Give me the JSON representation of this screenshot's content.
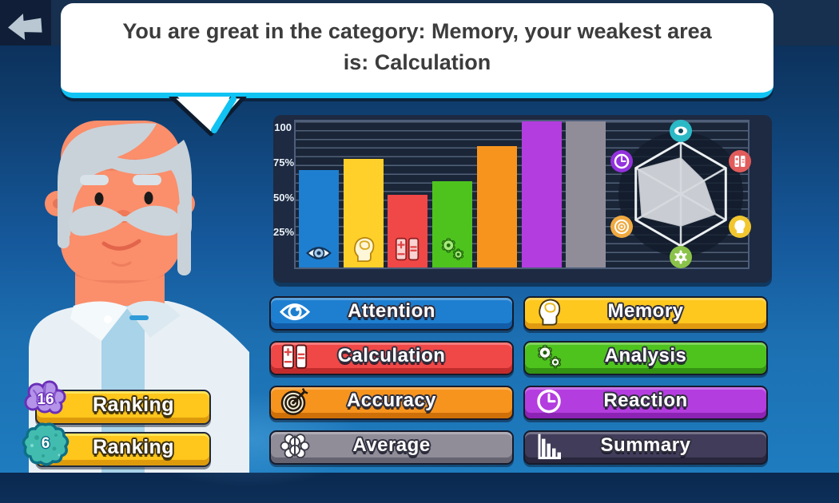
{
  "top_bar": {},
  "back_button": {
    "icon": "back-arrow"
  },
  "speech_bubble": {
    "text": "You are great in the category: Memory, your weakest area is: Calculation"
  },
  "chart_data": [
    {
      "type": "bar",
      "categories": [
        "Attention",
        "Memory",
        "Calculation",
        "Analysis",
        "Accuracy",
        "Reaction",
        "Average"
      ],
      "values": [
        70,
        78,
        52,
        62,
        87,
        106,
        106
      ],
      "colors": [
        "#1E7FD0",
        "#FFD02A",
        "#F04747",
        "#4EC31E",
        "#F7941E",
        "#B43DDF",
        "#908D99"
      ],
      "bar_icons": [
        "eye",
        "head",
        "calculator",
        "gears",
        null,
        null,
        null
      ],
      "yticks": [
        {
          "value": 100,
          "label": "100"
        },
        {
          "value": 75,
          "label": "75%"
        },
        {
          "value": 50,
          "label": "50%"
        },
        {
          "value": 25,
          "label": "25%"
        }
      ],
      "ylim": [
        0,
        106
      ],
      "grid": true,
      "note": "Reaction and Average bars are clipped at the top edge of the plot"
    },
    {
      "type": "radar",
      "axes": [
        "Attention",
        "Calculation",
        "Memory",
        "Analysis",
        "Accuracy",
        "Reaction"
      ],
      "values": [
        70,
        52,
        78,
        62,
        87,
        95
      ],
      "max": 100,
      "axis_icons": [
        "eye",
        "calculator",
        "head",
        "gears",
        "target",
        "clock"
      ],
      "axis_icon_colors": [
        "#2BB9C6",
        "#E25C5C",
        "#F1C62F",
        "#8BC34A",
        "#F0A940",
        "#9232DC"
      ]
    }
  ],
  "category_buttons": [
    {
      "label": "Attention",
      "icon": "eye-icon",
      "color": "#1E7FD0",
      "color_dark": "#125CA8"
    },
    {
      "label": "Memory",
      "icon": "head-icon",
      "color": "#FFC81F",
      "color_dark": "#E09A10"
    },
    {
      "label": "Calculation",
      "icon": "calculator-icon",
      "color": "#F04747",
      "color_dark": "#C22C2C"
    },
    {
      "label": "Analysis",
      "icon": "gears-icon",
      "color": "#4EC31E",
      "color_dark": "#349312"
    },
    {
      "label": "Accuracy",
      "icon": "target-icon",
      "color": "#F7941E",
      "color_dark": "#CE6F08"
    },
    {
      "label": "Reaction",
      "icon": "clock-icon",
      "color": "#B43DDF",
      "color_dark": "#8C23B4"
    },
    {
      "label": "Average",
      "icon": "brain-icon",
      "color": "#908D99",
      "color_dark": "#676472"
    },
    {
      "label": "Summary",
      "icon": "barchart-icon",
      "color": "#403C59",
      "color_dark": "#29263D"
    }
  ],
  "ranking_buttons": [
    {
      "label": "Ranking",
      "badge": "16",
      "badge_icon": "brain-badge"
    },
    {
      "label": "Ranking",
      "badge": "6",
      "badge_icon": "amoeba-badge"
    }
  ]
}
